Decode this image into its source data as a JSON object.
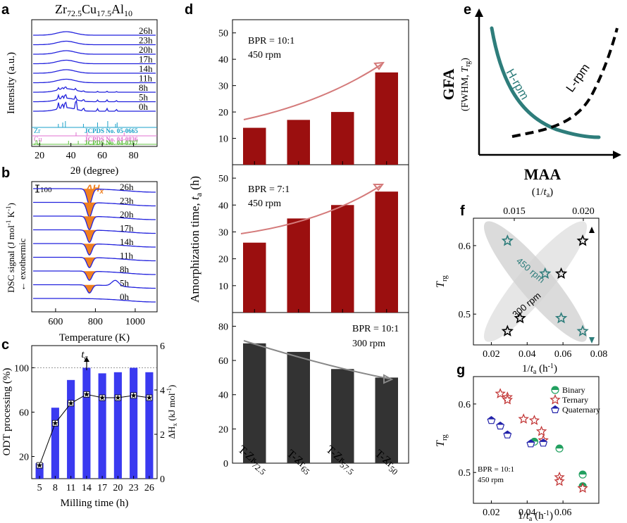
{
  "panels": {
    "a": {
      "letter": "a",
      "title": {
        "main": "Zr",
        "s1": "72.5",
        "m2": "Cu",
        "s2": "17.5",
        "m3": "Al",
        "s3": "10"
      },
      "xlabel": "2θ (degree)",
      "ylabel": "Intensity (a.u.)",
      "xticks": [
        "20",
        "40",
        "60",
        "80"
      ],
      "curve_labels": [
        "26h",
        "23h",
        "20h",
        "17h",
        "14h",
        "11h",
        "8h",
        "5h",
        "0h"
      ],
      "refs": [
        {
          "el": "Zr",
          "jcpds": "JCPDS No. 05-0665",
          "color": "#1aa0c8"
        },
        {
          "el": "Cu",
          "jcpds": "JCPDS No. 04-0836",
          "color": "#e070d0"
        },
        {
          "el": "Al",
          "jcpds": "JCPDS No. 04-0787",
          "color": "#60c040"
        }
      ]
    },
    "b": {
      "letter": "b",
      "scale_label": "100",
      "dh_label": "ΔH",
      "dh_sub": "x",
      "xlabel": "Temperature (K)",
      "ylabel": "DSC signal (J mol",
      "ylabel_mid": " K",
      "ylabel_end": ")",
      "ylabel_sup": "-1",
      "exo": "← exothermic",
      "xticks": [
        "600",
        "800",
        "1000"
      ],
      "curve_labels": [
        "26h",
        "23h",
        "20h",
        "17h",
        "14h",
        "11h",
        "8h",
        "5h",
        "0h"
      ]
    },
    "c": {
      "letter": "c",
      "ta_label": "t",
      "ta_sub": "a",
      "xlabel": "Milling time (h)",
      "ylabel_left": "ODT processing (%)",
      "ylabel_right_main": "ΔH",
      "ylabel_right_sub": "x",
      "ylabel_right_unit": " (kJ mol",
      "ylabel_right_sup": "-1",
      "ylabel_right_end": ")",
      "left_ticks": [
        "20",
        "60",
        "100"
      ],
      "right_ticks": [
        "0",
        "2",
        "4",
        "6"
      ],
      "x_ticks": [
        "5",
        "8",
        "11",
        "14",
        "17",
        "20",
        "23",
        "26"
      ]
    },
    "d": {
      "letter": "d",
      "ylabel_main": "Amorphization time, ",
      "ylabel_italic": "t",
      "ylabel_sub": "a",
      "ylabel_unit": " (h)",
      "sub1": {
        "bpr": "BPR = 10:1",
        "rpm": "450 rpm",
        "ticks": [
          "10",
          "20",
          "30",
          "40",
          "50"
        ]
      },
      "sub2": {
        "bpr": "BPR = 7:1",
        "rpm": "450 rpm",
        "ticks": [
          "10",
          "20",
          "30",
          "40",
          "50"
        ]
      },
      "sub3": {
        "bpr": "BPR = 10:1",
        "rpm": "300 rpm",
        "ticks": [
          "0",
          "20",
          "40",
          "60",
          "80"
        ]
      },
      "categories": [
        {
          "main": "T-Zr",
          "sub": "72.5"
        },
        {
          "main": "T-Zr",
          "sub": "65"
        },
        {
          "main": "T-Zr",
          "sub": "57.5"
        },
        {
          "main": "T-Zr",
          "sub": "50"
        }
      ]
    },
    "e": {
      "letter": "e",
      "ylabel": "GFA",
      "ylabel2_pre": "(FWHM, ",
      "ylabel2_t": "T",
      "ylabel2_sub": "rg",
      "ylabel2_end": ")",
      "xlabel": "MAA",
      "xlabel2_pre": "(1/",
      "xlabel2_t": "t",
      "xlabel2_sub": "a",
      "xlabel2_end": ")",
      "h_label": "H-rpm",
      "l_label": "L-rpm"
    },
    "f": {
      "letter": "f",
      "top_ticks": [
        "0.015",
        "0.020"
      ],
      "bottom_ticks": [
        "0.02",
        "0.04",
        "0.06",
        "0.08"
      ],
      "y_ticks": [
        "0.5",
        "0.6"
      ],
      "ylabel_t": "T",
      "ylabel_sub": "rg",
      "xlabel_pre": "1/",
      "xlabel_t": "t",
      "xlabel_sub": "a",
      "xlabel_unit": " (h",
      "xlabel_sup": "-1",
      "xlabel_end": ")",
      "label_450": "450 rpm",
      "label_300": "300 rpm"
    },
    "g": {
      "letter": "g",
      "x_ticks": [
        "0.02",
        "0.04",
        "0.06"
      ],
      "y_ticks": [
        "0.5",
        "0.6"
      ],
      "ylabel_t": "T",
      "ylabel_sub": "rg",
      "xlabel_pre": "1/",
      "xlabel_t": "t",
      "xlabel_sub": "a",
      "xlabel_unit": " (h",
      "xlabel_sup": "-1",
      "xlabel_end": ")",
      "legend": [
        "Binary",
        "Ternary",
        "Quaternary"
      ],
      "note_bpr": "BPR = 10:1",
      "note_rpm": "450 rpm"
    }
  },
  "colors": {
    "blue": "#2222dd",
    "bar_blue": "#3a3af0",
    "dark_red": "#9b0f0f",
    "dark_gray": "#333333",
    "teal": "#2e7d7b",
    "orange": "#f08020",
    "salmon": "#d06a6a",
    "green": "#22a060",
    "red": "#c03030"
  },
  "chart_data": [
    {
      "id": "c",
      "type": "bar",
      "title": "",
      "xlabel": "Milling time (h)",
      "ylabel": "ODT processing (%)",
      "categories": [
        "5",
        "8",
        "11",
        "14",
        "17",
        "20",
        "23",
        "26"
      ],
      "series": [
        {
          "name": "ODT processing (%)",
          "axis": "left",
          "values": [
            14,
            64,
            89,
            100,
            95,
            96,
            100,
            96
          ]
        },
        {
          "name": "ΔHx (kJ mol-1)",
          "axis": "right",
          "type": "line",
          "values": [
            0.6,
            2.5,
            3.4,
            3.8,
            3.65,
            3.65,
            3.75,
            3.65
          ]
        }
      ],
      "ylim": [
        0,
        120
      ],
      "ylim_right": [
        0,
        6
      ],
      "reference_line": 100
    },
    {
      "id": "d1",
      "type": "bar",
      "title": "BPR = 10:1, 450 rpm",
      "xlabel": "",
      "ylabel": "Amorphization time, ta (h)",
      "categories": [
        "T-Zr72.5",
        "T-Zr65",
        "T-Zr57.5",
        "T-Zr50"
      ],
      "values": [
        14,
        17,
        20,
        35
      ],
      "ylim": [
        0,
        55
      ]
    },
    {
      "id": "d2",
      "type": "bar",
      "title": "BPR = 7:1, 450 rpm",
      "xlabel": "",
      "ylabel": "Amorphization time, ta (h)",
      "categories": [
        "T-Zr72.5",
        "T-Zr65",
        "T-Zr57.5",
        "T-Zr50"
      ],
      "values": [
        26,
        35,
        40,
        45
      ],
      "ylim": [
        0,
        55
      ]
    },
    {
      "id": "d3",
      "type": "bar",
      "title": "BPR = 10:1, 300 rpm",
      "xlabel": "",
      "ylabel": "Amorphization time, ta (h)",
      "categories": [
        "T-Zr72.5",
        "T-Zr65",
        "T-Zr57.5",
        "T-Zr50"
      ],
      "values": [
        70,
        65,
        55,
        50
      ],
      "ylim": [
        0,
        88
      ]
    },
    {
      "id": "f",
      "type": "scatter",
      "title": "",
      "xlabel": "1/ta (h-1)",
      "ylabel": "Trg",
      "xlim": [
        0.01,
        0.08
      ],
      "ylim": [
        0.455,
        0.64
      ],
      "series": [
        {
          "name": "450 rpm",
          "x": [
            0.029,
            0.05,
            0.059,
            0.071
          ],
          "y": [
            0.607,
            0.559,
            0.494,
            0.475
          ]
        },
        {
          "name": "300 rpm",
          "x": [
            0.029,
            0.036,
            0.059,
            0.071
          ],
          "y": [
            0.475,
            0.494,
            0.559,
            0.607
          ]
        }
      ]
    },
    {
      "id": "g",
      "type": "scatter",
      "title": "",
      "xlabel": "1/ta (h-1)",
      "ylabel": "Trg",
      "xlim": [
        0.01,
        0.08
      ],
      "ylim": [
        0.455,
        0.64
      ],
      "series": [
        {
          "name": "Binary",
          "x": [
            0.044,
            0.058,
            0.071,
            0.071
          ],
          "y": [
            0.545,
            0.535,
            0.497,
            0.48
          ]
        },
        {
          "name": "Ternary",
          "x": [
            0.025,
            0.029,
            0.029,
            0.038,
            0.044,
            0.048,
            0.049,
            0.058,
            0.058,
            0.071
          ],
          "y": [
            0.615,
            0.61,
            0.606,
            0.578,
            0.576,
            0.56,
            0.547,
            0.493,
            0.487,
            0.477
          ]
        },
        {
          "name": "Quaternary",
          "x": [
            0.02,
            0.025,
            0.029,
            0.042,
            0.049
          ],
          "y": [
            0.576,
            0.568,
            0.555,
            0.542,
            0.543
          ]
        }
      ]
    }
  ]
}
